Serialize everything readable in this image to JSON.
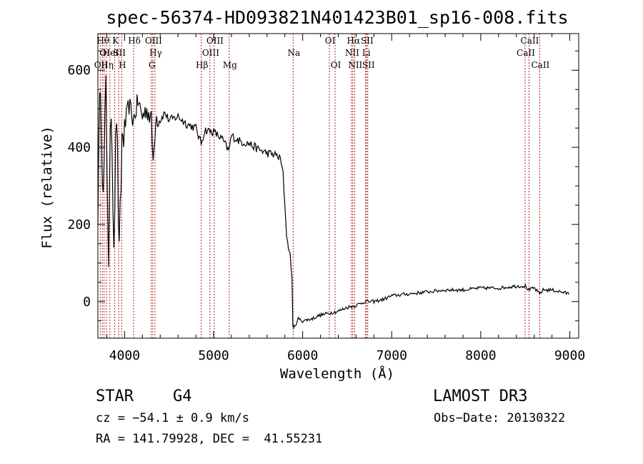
{
  "chart_data": {
    "type": "line",
    "title": "spec-56374-HD093821N401423B01_sp16-008.fits",
    "xlabel": "Wavelength (Å)",
    "ylabel": "Flux (relative)",
    "xlim": [
      3700,
      9100
    ],
    "ylim": [
      -95,
      695
    ],
    "xticks": [
      4000,
      5000,
      6000,
      7000,
      8000,
      9000
    ],
    "yticks": [
      0,
      200,
      400,
      600
    ],
    "series": [
      {
        "name": "spectrum",
        "x": [
          3700,
          3730,
          3760,
          3790,
          3820,
          3850,
          3880,
          3910,
          3940,
          3970,
          4000,
          4050,
          4100,
          4150,
          4200,
          4250,
          4300,
          4320,
          4350,
          4400,
          4450,
          4500,
          4600,
          4700,
          4800,
          4860,
          4900,
          5000,
          5100,
          5170,
          5200,
          5300,
          5400,
          5500,
          5600,
          5700,
          5750,
          5780,
          5800,
          5820,
          5840,
          5860,
          5880,
          5890,
          5900,
          5920,
          5950,
          6000,
          6100,
          6200,
          6300,
          6400,
          6500,
          6600,
          6700,
          6800,
          6900,
          7000,
          7200,
          7400,
          7600,
          7800,
          8000,
          8200,
          8400,
          8500,
          8540,
          8600,
          8660,
          8700,
          8800,
          8900,
          9000
        ],
        "values": [
          250,
          600,
          250,
          550,
          120,
          520,
          170,
          500,
          100,
          420,
          450,
          510,
          470,
          520,
          480,
          500,
          470,
          360,
          480,
          470,
          490,
          470,
          480,
          460,
          450,
          410,
          445,
          440,
          420,
          390,
          430,
          415,
          410,
          395,
          385,
          380,
          370,
          330,
          250,
          170,
          140,
          120,
          60,
          -60,
          -70,
          -60,
          -45,
          -50,
          -45,
          -35,
          -30,
          -25,
          -15,
          -10,
          0,
          0,
          5,
          15,
          20,
          25,
          30,
          30,
          35,
          35,
          40,
          40,
          30,
          35,
          20,
          30,
          30,
          25,
          20
        ]
      }
    ],
    "spectral_lines": [
      {
        "x": 3727,
        "label": "OII",
        "tier": 3
      },
      {
        "x": 3750,
        "label": "Hθ",
        "tier": 1
      },
      {
        "x": 3770,
        "label": "OI",
        "tier": 2
      },
      {
        "x": 3797,
        "label": "Hη",
        "tier": 3
      },
      {
        "x": 3835,
        "label": "HeI",
        "tier": 2
      },
      {
        "x": 3889,
        "label": "K",
        "tier": 1
      },
      {
        "x": 3934,
        "label": "SII",
        "tier": 2
      },
      {
        "x": 3968,
        "label": "H",
        "tier": 3
      },
      {
        "x": 4102,
        "label": "Hδ",
        "tier": 1
      },
      {
        "x": 4300,
        "label": "G",
        "tier": 3
      },
      {
        "x": 4317,
        "label": "OIII",
        "tier": 1
      },
      {
        "x": 4341,
        "label": "Hγ",
        "tier": 2
      },
      {
        "x": 4861,
        "label": "Hβ",
        "tier": 3
      },
      {
        "x": 4959,
        "label": "OIII",
        "tier": 2
      },
      {
        "x": 5007,
        "label": "OIII",
        "tier": 1
      },
      {
        "x": 5175,
        "label": "Mg",
        "tier": 3
      },
      {
        "x": 5893,
        "label": "Na",
        "tier": 2
      },
      {
        "x": 6300,
        "label": "OI",
        "tier": 1
      },
      {
        "x": 6364,
        "label": "OI",
        "tier": 3
      },
      {
        "x": 6548,
        "label": "NII",
        "tier": 2
      },
      {
        "x": 6563,
        "label": "Hα",
        "tier": 1
      },
      {
        "x": 6583,
        "label": "NII",
        "tier": 3
      },
      {
        "x": 6707,
        "label": "Li",
        "tier": 2
      },
      {
        "x": 6716,
        "label": "SII",
        "tier": 1
      },
      {
        "x": 6731,
        "label": "SII",
        "tier": 3
      },
      {
        "x": 8498,
        "label": "CaII",
        "tier": 2
      },
      {
        "x": 8542,
        "label": "CaII",
        "tier": 1
      },
      {
        "x": 8662,
        "label": "CaII",
        "tier": 3
      }
    ]
  },
  "info": {
    "class": "STAR",
    "subclass": "G4",
    "survey": "LAMOST DR3",
    "redshift": "cz = −54.1 ± 0.9 km/s",
    "obs_date": "Obs−Date: 20130322",
    "coords": "RA = 141.79928, DEC =  41.55231"
  },
  "colors": {
    "spectrum": "#000000",
    "line_marker": "#b22222",
    "axis": "#000000"
  }
}
